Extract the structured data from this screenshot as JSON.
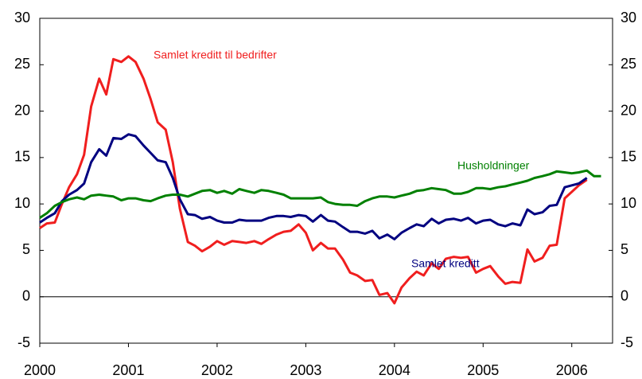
{
  "chart_data": {
    "type": "line",
    "x": [
      2000,
      2000.08,
      2000.17,
      2000.25,
      2000.33,
      2000.42,
      2000.5,
      2000.58,
      2000.67,
      2000.75,
      2000.83,
      2000.92,
      2001,
      2001.08,
      2001.17,
      2001.25,
      2001.33,
      2001.42,
      2001.5,
      2001.58,
      2001.67,
      2001.75,
      2001.83,
      2001.92,
      2002,
      2002.08,
      2002.17,
      2002.25,
      2002.33,
      2002.42,
      2002.5,
      2002.58,
      2002.67,
      2002.75,
      2002.83,
      2002.92,
      2003,
      2003.08,
      2003.17,
      2003.25,
      2003.33,
      2003.42,
      2003.5,
      2003.58,
      2003.67,
      2003.75,
      2003.83,
      2003.92,
      2004,
      2004.08,
      2004.17,
      2004.25,
      2004.33,
      2004.42,
      2004.5,
      2004.58,
      2004.67,
      2004.75,
      2004.83,
      2004.92,
      2005,
      2005.08,
      2005.17,
      2005.25,
      2005.33,
      2005.42,
      2005.5,
      2005.58,
      2005.67,
      2005.75,
      2005.83,
      2005.92,
      2006,
      2006.08,
      2006.17,
      2006.25,
      2006.33
    ],
    "series": [
      {
        "name": "Samlet kreditt til bedrifter",
        "color": "#f01e1e",
        "values": [
          7.4,
          7.9,
          8.0,
          10.0,
          11.8,
          13.2,
          15.3,
          20.5,
          23.5,
          21.8,
          25.6,
          25.3,
          25.9,
          25.3,
          23.5,
          21.3,
          18.8,
          18.0,
          14.5,
          9.5,
          5.9,
          5.5,
          4.9,
          5.4,
          6.0,
          5.6,
          6.0,
          5.9,
          5.8,
          6.0,
          5.7,
          6.2,
          6.7,
          7.0,
          7.1,
          7.8,
          6.9,
          5.0,
          5.8,
          5.2,
          5.2,
          4.0,
          2.6,
          2.3,
          1.7,
          1.8,
          0.2,
          0.4,
          -0.7,
          1.0,
          2.0,
          2.7,
          2.3,
          3.6,
          3.0,
          4.1,
          4.3,
          4.2,
          4.3,
          2.6,
          3.0,
          3.3,
          2.2,
          1.4,
          1.6,
          1.5,
          5.1,
          3.8,
          4.2,
          5.5,
          5.6,
          10.6,
          11.3,
          12.0,
          12.6,
          null,
          null
        ]
      },
      {
        "name": "Samlet kreditt",
        "color": "#000080",
        "values": [
          8.0,
          8.5,
          9.0,
          10.3,
          11.0,
          11.5,
          12.2,
          14.5,
          15.9,
          15.2,
          17.1,
          17.0,
          17.5,
          17.3,
          16.3,
          15.5,
          14.7,
          14.5,
          12.8,
          10.5,
          8.9,
          8.8,
          8.4,
          8.6,
          8.2,
          8.0,
          8.0,
          8.3,
          8.2,
          8.2,
          8.2,
          8.5,
          8.7,
          8.7,
          8.6,
          8.8,
          8.7,
          8.1,
          8.8,
          8.2,
          8.1,
          7.5,
          7.0,
          7.0,
          6.8,
          7.1,
          6.3,
          6.7,
          6.2,
          6.9,
          7.4,
          7.8,
          7.6,
          8.4,
          7.9,
          8.3,
          8.4,
          8.2,
          8.5,
          7.9,
          8.2,
          8.3,
          7.8,
          7.6,
          7.9,
          7.7,
          9.4,
          8.9,
          9.1,
          9.8,
          9.9,
          11.8,
          12.0,
          12.2,
          12.8,
          null,
          null
        ]
      },
      {
        "name": "Husholdninger",
        "color": "#008000",
        "values": [
          8.5,
          9.0,
          9.8,
          10.2,
          10.5,
          10.7,
          10.5,
          10.9,
          11.0,
          10.9,
          10.8,
          10.4,
          10.6,
          10.6,
          10.4,
          10.3,
          10.6,
          10.9,
          11.0,
          11.0,
          10.8,
          11.1,
          11.4,
          11.5,
          11.2,
          11.4,
          11.1,
          11.6,
          11.4,
          11.2,
          11.5,
          11.4,
          11.2,
          11.0,
          10.6,
          10.6,
          10.6,
          10.6,
          10.7,
          10.2,
          10.0,
          9.9,
          9.9,
          9.8,
          10.3,
          10.6,
          10.8,
          10.8,
          10.7,
          10.9,
          11.1,
          11.4,
          11.5,
          11.7,
          11.6,
          11.5,
          11.1,
          11.1,
          11.3,
          11.7,
          11.7,
          11.6,
          11.8,
          11.9,
          12.1,
          12.3,
          12.5,
          12.8,
          13.0,
          13.2,
          13.5,
          13.4,
          13.3,
          13.4,
          13.6,
          13.0,
          13.0
        ]
      }
    ],
    "xlim": [
      2000,
      2006.46
    ],
    "xticks": [
      2000,
      2001,
      2002,
      2003,
      2004,
      2005,
      2006
    ],
    "ylim": [
      -5,
      30
    ],
    "yticks": [
      -5,
      0,
      5,
      10,
      15,
      20,
      25,
      30
    ],
    "y2lim": [
      -5,
      30
    ],
    "y2ticks": [
      -5,
      0,
      5,
      10,
      15,
      20,
      25,
      30
    ],
    "grid": false
  }
}
